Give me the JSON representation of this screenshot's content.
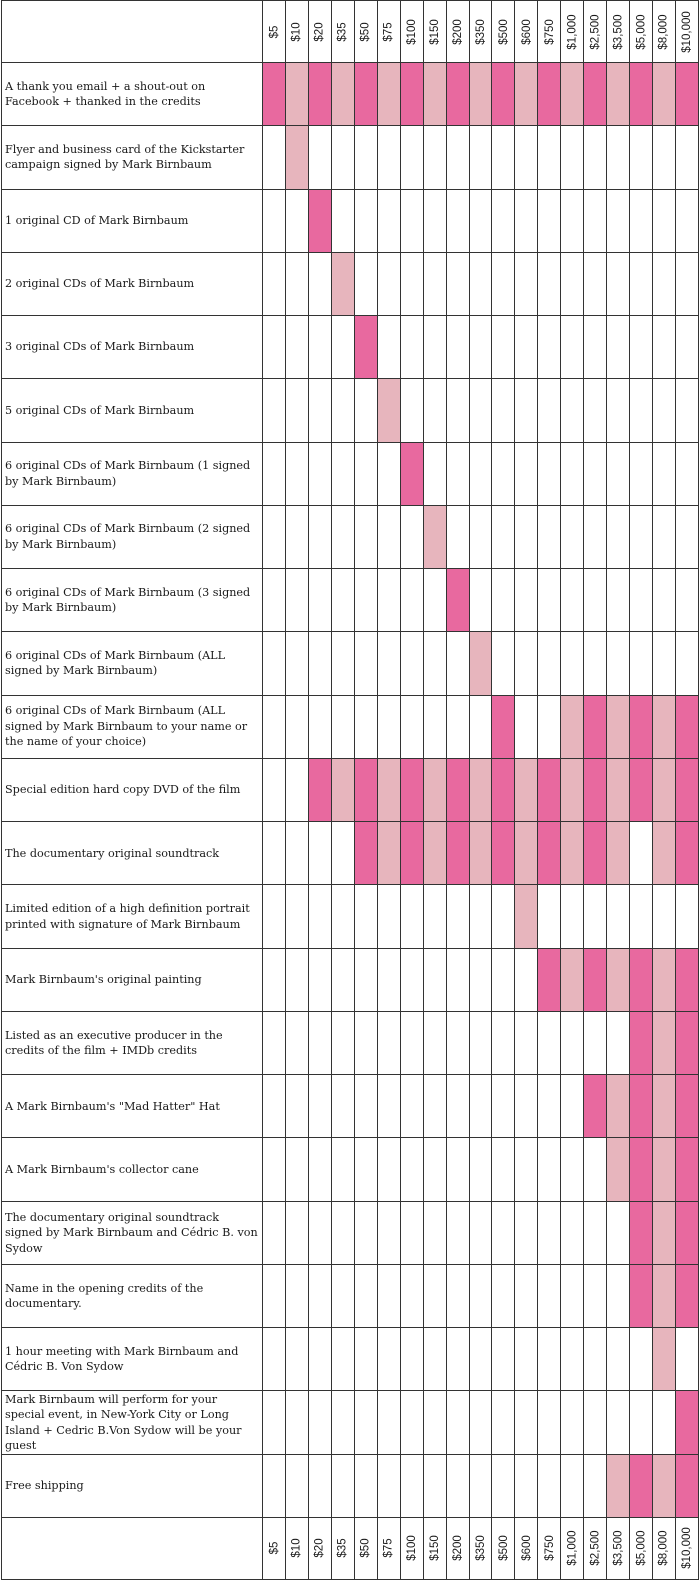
{
  "chart_data": {
    "type": "table",
    "colors": {
      "dark": "#e8699f",
      "light": "#e7b5bd",
      "grid": "#333333"
    },
    "tiers": [
      "$5",
      "$10",
      "$20",
      "$35",
      "$50",
      "$75",
      "$100",
      "$150",
      "$200",
      "$350",
      "$500",
      "$600",
      "$750",
      "$1,000",
      "$2,500",
      "$3,500",
      "$5,000",
      "$8,000",
      "$10,000"
    ],
    "rewards": [
      {
        "label": "A thank you email + a shout-out on Facebook + thanked in the credits",
        "from": 0,
        "to": 18
      },
      {
        "label": "Flyer and business card of the Kickstarter campaign signed by Mark Birnbaum",
        "from": 1,
        "to": 1
      },
      {
        "label": "1 original CD of Mark Birnbaum",
        "from": 2,
        "to": 2
      },
      {
        "label": "2 original CDs of Mark Birnbaum",
        "from": 3,
        "to": 3
      },
      {
        "label": "3 original CDs of Mark Birnbaum",
        "from": 4,
        "to": 4
      },
      {
        "label": "5 original CDs of Mark Birnbaum",
        "from": 5,
        "to": 5
      },
      {
        "label": "6 original CDs of Mark Birnbaum (1 signed by Mark Birnbaum)",
        "from": 6,
        "to": 6
      },
      {
        "label": "6 original CDs of Mark Birnbaum (2 signed by Mark Birnbaum)",
        "from": 7,
        "to": 7
      },
      {
        "label": "6 original CDs of Mark Birnbaum (3 signed by Mark Birnbaum)",
        "from": 8,
        "to": 8
      },
      {
        "label": "6 original CDs of Mark Birnbaum (ALL signed by Mark Birnbaum)",
        "from": 9,
        "to": 9
      },
      {
        "label": "6 original CDs of Mark Birnbaum (ALL signed by Mark Birnbaum to your name or the name of your choice)",
        "cells": [
          10,
          13,
          14,
          15,
          16,
          17,
          18
        ]
      },
      {
        "label": "Special edition hard copy DVD of the film",
        "from": 2,
        "to": 18
      },
      {
        "label": "The documentary original soundtrack",
        "cells": [
          4,
          5,
          6,
          7,
          8,
          9,
          10,
          11,
          12,
          13,
          14,
          15,
          17,
          18
        ]
      },
      {
        "label": "Limited edition of a high definition portrait printed with signature of Mark Birnbaum",
        "from": 11,
        "to": 11
      },
      {
        "label": "Mark Birnbaum's original painting",
        "from": 12,
        "to": 18
      },
      {
        "label": "Listed as an executive producer in the credits of the film + IMDb credits",
        "from": 16,
        "to": 18
      },
      {
        "label": "A Mark Birnbaum's \"Mad Hatter\" Hat",
        "from": 14,
        "to": 18
      },
      {
        "label": "A Mark Birnbaum's collector cane",
        "from": 15,
        "to": 18
      },
      {
        "label": "The documentary original soundtrack signed by Mark Birnbaum and Cédric B. von Sydow",
        "from": 16,
        "to": 18
      },
      {
        "label": "Name in the opening credits of the documentary.",
        "from": 16,
        "to": 18
      },
      {
        "label": "1 hour meeting with Mark Birnbaum and Cédric B. Von Sydow",
        "from": 17,
        "to": 17
      },
      {
        "label": "Mark Birnbaum will perform for your special event, in New-York City or Long Island + Cedric B.Von Sydow will be your guest",
        "from": 18,
        "to": 18
      },
      {
        "label": "Free shipping",
        "from": 15,
        "to": 18
      }
    ]
  }
}
